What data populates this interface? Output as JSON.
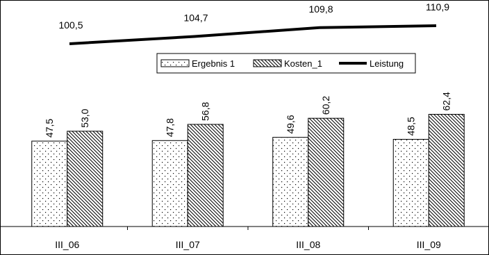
{
  "chart_data": {
    "type": "bar",
    "categories": [
      "III_06",
      "III_07",
      "III_08",
      "III_09"
    ],
    "series": [
      {
        "name": "Ergebnis 1",
        "kind": "bar",
        "pattern": "dotted",
        "values": [
          47.5,
          47.8,
          49.6,
          48.5
        ],
        "labels": [
          "47,5",
          "47,8",
          "49,6",
          "48,5"
        ]
      },
      {
        "name": "Kosten_1",
        "kind": "bar",
        "pattern": "diagonal-hatch",
        "values": [
          53.0,
          56.8,
          60.2,
          62.4
        ],
        "labels": [
          "53,0",
          "56,8",
          "60,2",
          "62,4"
        ]
      },
      {
        "name": "Leistung",
        "kind": "line",
        "color": "#000000",
        "values": [
          100.5,
          104.7,
          109.8,
          110.9
        ],
        "labels": [
          "100,5",
          "104,7",
          "109,8",
          "110,9"
        ]
      }
    ],
    "title": "",
    "xlabel": "",
    "ylabel": "",
    "ylim": [
      0,
      125
    ],
    "grid": false,
    "legend_placement": "upper-center"
  },
  "colors": {
    "background": "#ffffff",
    "ink": "#000000",
    "bar_fill": "#ffffff"
  }
}
